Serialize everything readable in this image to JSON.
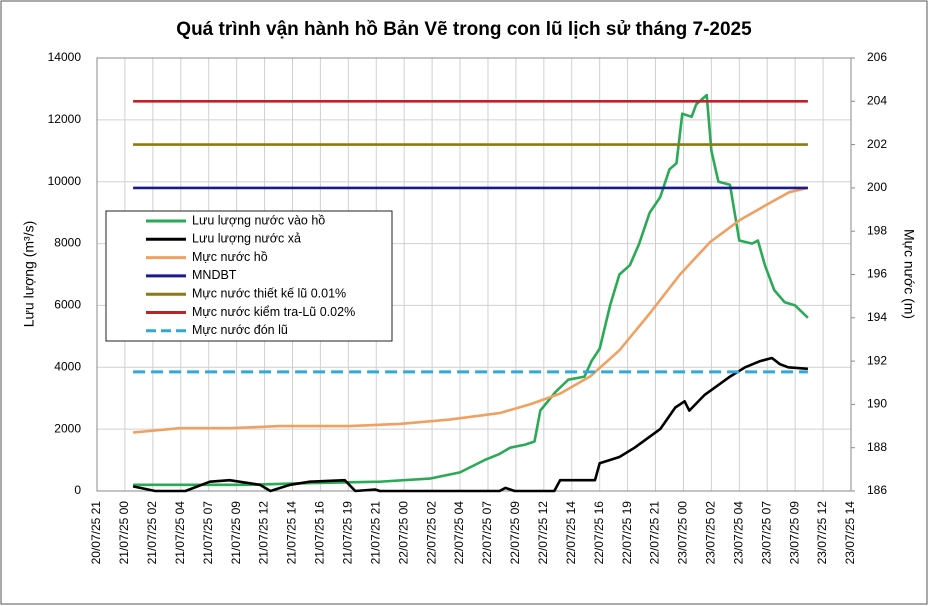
{
  "chart_data": {
    "type": "line",
    "title": "Quá trình vận hành hồ Bản Vẽ trong con lũ lịch sử tháng 7-2025",
    "ylabel": "Lưu lượng (m³/s)",
    "y2label": "Mực nước (m)",
    "xlim": [
      0,
      64.8
    ],
    "xticks": [
      {
        "value": 0,
        "label": "20/07/25 21"
      },
      {
        "value": 2.4,
        "label": "21/07/25 00"
      },
      {
        "value": 4.8,
        "label": "21/07/25 02"
      },
      {
        "value": 7.2,
        "label": "21/07/25 04"
      },
      {
        "value": 9.6,
        "label": "21/07/25 07"
      },
      {
        "value": 12,
        "label": "21/07/25 09"
      },
      {
        "value": 14.4,
        "label": "21/07/25 12"
      },
      {
        "value": 16.8,
        "label": "21/07/25 14"
      },
      {
        "value": 19.2,
        "label": "21/07/25 16"
      },
      {
        "value": 21.6,
        "label": "21/07/25 19"
      },
      {
        "value": 24,
        "label": "21/07/25 21"
      },
      {
        "value": 26.4,
        "label": "22/07/25 00"
      },
      {
        "value": 28.8,
        "label": "22/07/25 02"
      },
      {
        "value": 31.2,
        "label": "22/07/25 04"
      },
      {
        "value": 33.6,
        "label": "22/07/25 07"
      },
      {
        "value": 36,
        "label": "22/07/25 09"
      },
      {
        "value": 38.4,
        "label": "22/07/25 12"
      },
      {
        "value": 40.8,
        "label": "22/07/25 14"
      },
      {
        "value": 43.2,
        "label": "22/07/25 16"
      },
      {
        "value": 45.6,
        "label": "22/07/25 19"
      },
      {
        "value": 48,
        "label": "22/07/25 21"
      },
      {
        "value": 50.4,
        "label": "23/07/25 00"
      },
      {
        "value": 52.8,
        "label": "23/07/25 02"
      },
      {
        "value": 55.2,
        "label": "23/07/25 04"
      },
      {
        "value": 57.6,
        "label": "23/07/25 07"
      },
      {
        "value": 60,
        "label": "23/07/25 09"
      },
      {
        "value": 62.4,
        "label": "23/07/25 12"
      },
      {
        "value": 64.8,
        "label": "23/07/25 14"
      }
    ],
    "ylim": [
      0,
      14000
    ],
    "yticks": [
      0,
      2000,
      4000,
      6000,
      8000,
      10000,
      12000,
      14000
    ],
    "y2lim": [
      186,
      206
    ],
    "y2ticks": [
      186,
      188,
      190,
      192,
      194,
      196,
      198,
      200,
      202,
      204,
      206
    ],
    "grid": true,
    "series": [
      {
        "name": "Lưu lượng nước vào hồ",
        "color": "#2aaa55",
        "x": [
          3.1,
          13.1,
          17.4,
          24.3,
          28.6,
          31.2,
          33.3,
          34.6,
          35.5,
          36.8,
          37.6,
          38.1,
          39.4,
          40.5,
          41.9,
          42.5,
          43.2,
          44.1,
          44.9,
          45.8,
          46.6,
          47.5,
          48.4,
          49.2,
          49.8,
          50.3,
          51.1,
          51.5,
          52.4,
          52.8,
          53.4,
          54.4,
          55.2,
          56.3,
          56.8,
          57.4,
          58.2,
          59.1,
          60.0,
          61.1
        ],
        "values": [
          200,
          200,
          250,
          300,
          400,
          600,
          1000,
          1200,
          1400,
          1500,
          1600,
          2600,
          3200,
          3600,
          3700,
          4200,
          4600,
          6000,
          7000,
          7300,
          8000,
          9000,
          9500,
          10400,
          10600,
          12200,
          12100,
          12500,
          12800,
          11000,
          10000,
          9900,
          8100,
          8000,
          8100,
          7300,
          6500,
          6100,
          6000,
          5600
        ]
      },
      {
        "name": "Lưu lượng nước xả",
        "color": "#000000",
        "x": [
          3.1,
          5.0,
          7.6,
          9.7,
          11.4,
          14.0,
          14.9,
          16.6,
          18.3,
          21.3,
          22.2,
          23.9,
          24.3,
          34.6,
          35.1,
          35.9,
          39.3,
          39.8,
          42.8,
          43.2,
          44.9,
          46.2,
          48.4,
          49.7,
          50.5,
          50.9,
          52.2,
          54.4,
          55.7,
          57.0,
          58.0,
          58.7,
          59.4,
          61.1
        ],
        "values": [
          150,
          0,
          0,
          300,
          350,
          200,
          0,
          200,
          300,
          350,
          0,
          50,
          0,
          0,
          100,
          0,
          0,
          350,
          350,
          900,
          1100,
          1400,
          2000,
          2700,
          2900,
          2600,
          3100,
          3700,
          4000,
          4200,
          4300,
          4100,
          4000,
          3950
        ]
      },
      {
        "name": "Mực nước hồ",
        "color": "#f0a060",
        "axis": "y2",
        "x": [
          3.1,
          7.1,
          11.4,
          15.7,
          21.7,
          26.0,
          30.3,
          34.6,
          37.2,
          39.8,
          42.4,
          44.9,
          47.5,
          50.1,
          52.7,
          55.2,
          57.8,
          59.5,
          61.1
        ],
        "values": [
          188.7,
          188.9,
          188.9,
          189.0,
          189.0,
          189.1,
          189.3,
          189.6,
          190.0,
          190.5,
          191.3,
          192.5,
          194.2,
          196.0,
          197.5,
          198.5,
          199.3,
          199.8,
          200.0
        ]
      },
      {
        "name": "MNDBT",
        "color": "#1a1a8c",
        "axis": "y2",
        "x": [
          3.1,
          61.1
        ],
        "values": [
          200,
          200
        ]
      },
      {
        "name": "Mực nước thiết kế lũ 0.01%",
        "color": "#8c7a10",
        "axis": "y2",
        "x": [
          3.1,
          61.1
        ],
        "values": [
          202,
          202
        ]
      },
      {
        "name": "Mực nước kiểm tra-Lũ 0.02%",
        "color": "#c0202a",
        "axis": "y2",
        "x": [
          3.1,
          61.1
        ],
        "values": [
          204,
          204
        ]
      },
      {
        "name": "Mực nước đón lũ",
        "color": "#30a8d8",
        "axis": "y2",
        "dash": true,
        "x": [
          3.1,
          61.1
        ],
        "values": [
          191.5,
          191.5
        ]
      }
    ]
  }
}
